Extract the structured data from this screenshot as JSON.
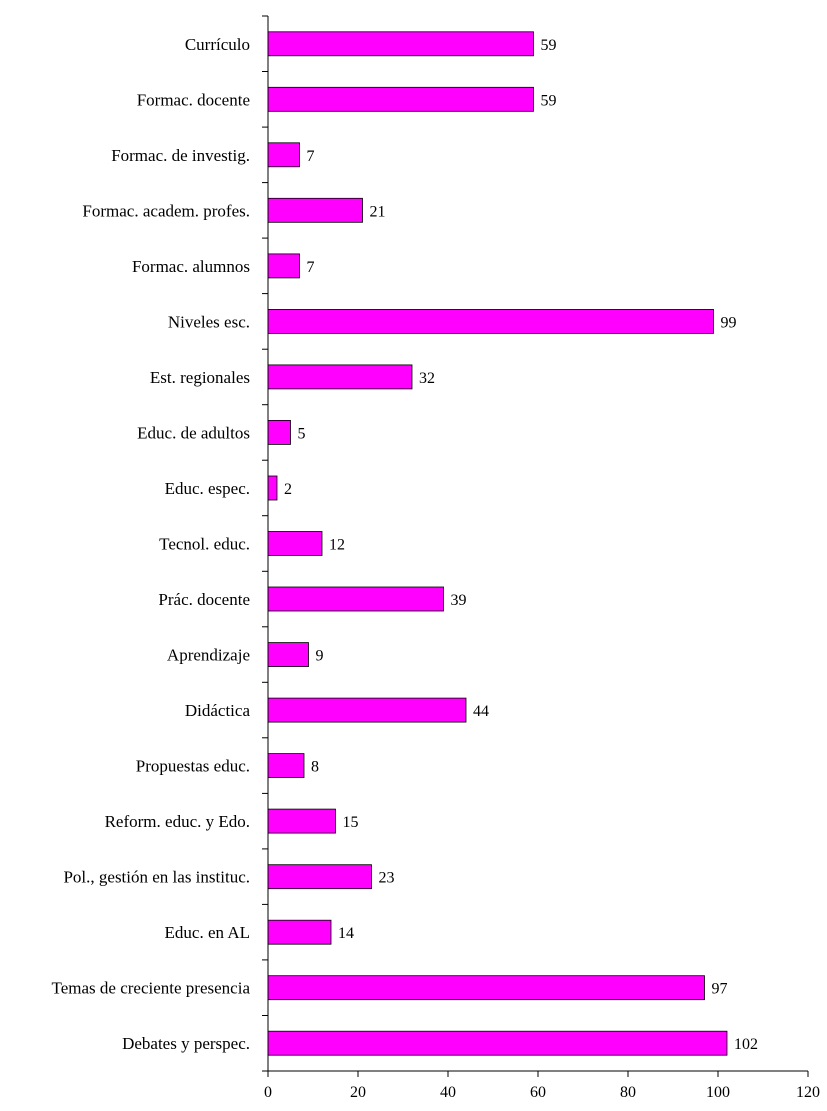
{
  "chart_data": {
    "type": "bar",
    "orientation": "horizontal",
    "title": "",
    "xlabel": "",
    "ylabel": "",
    "categories": [
      "Currículo",
      "Formac. docente",
      "Formac. de investig.",
      "Formac. academ. profes.",
      "Formac. alumnos",
      "Niveles esc.",
      "Est. regionales",
      "Educ. de adultos",
      "Educ. espec.",
      "Tecnol. educ.",
      "Prác. docente",
      "Aprendizaje",
      "Didáctica",
      "Propuestas educ.",
      "Reform. educ. y Edo.",
      "Pol., gestión en las instituc.",
      "Educ. en AL",
      "Temas de creciente presencia",
      "Debates y perspec."
    ],
    "values": [
      59,
      59,
      7,
      21,
      7,
      99,
      32,
      5,
      2,
      12,
      39,
      9,
      44,
      8,
      15,
      23,
      14,
      97,
      102
    ],
    "xlim": [
      0,
      120
    ],
    "xticks": [
      0,
      20,
      40,
      60,
      80,
      100,
      120
    ],
    "bar_color": "#ff00ff",
    "data_labels": true,
    "grid": false
  }
}
